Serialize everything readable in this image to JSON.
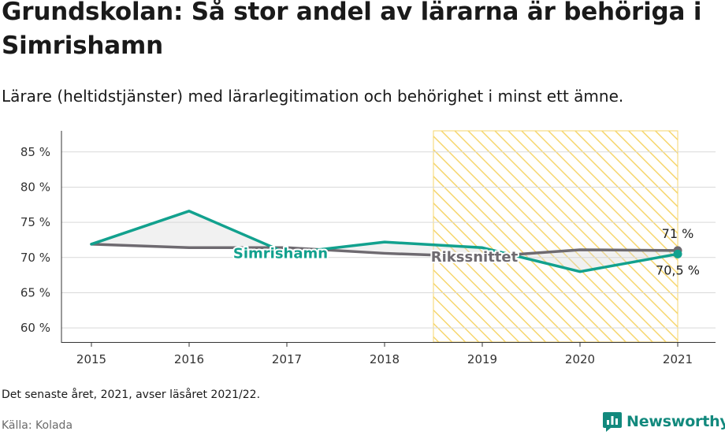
{
  "title": "Grundskolan: Så stor andel av lärarna är behöriga i Simrishamn",
  "subtitle": "Lärare (heltidstjänster) med lärarlegitimation och behörighet i minst ett ämne.",
  "note": "Det senaste året, 2021, avser läsåret 2021/22.",
  "source": "Källa: Kolada",
  "brand": {
    "name": "Newsworthy",
    "icon": "newsworthy-logo-icon",
    "color": "#12897d"
  },
  "chart_data": {
    "type": "line",
    "x": [
      "2015",
      "2016",
      "2017",
      "2018",
      "2019",
      "2020",
      "2021"
    ],
    "y_ticks": [
      60,
      65,
      70,
      75,
      80,
      85
    ],
    "y_tick_labels": [
      "60 %",
      "65 %",
      "70 %",
      "75 %",
      "80 %",
      "85 %"
    ],
    "ylim": [
      58,
      88
    ],
    "grid": true,
    "highlight": {
      "from": "2018.5",
      "to": "2021",
      "pattern": "hatched",
      "color": "#f6d66e"
    },
    "series": [
      {
        "name": "Simrishamn",
        "color": "#12a18e",
        "values": [
          71.9,
          76.6,
          70.6,
          72.2,
          71.4,
          68.0,
          70.5
        ]
      },
      {
        "name": "Rikssnittet",
        "color": "#6e6a70",
        "values": [
          71.9,
          71.4,
          71.4,
          70.6,
          70.1,
          71.1,
          71.0
        ]
      }
    ],
    "end_labels": {
      "Rikssnittet": "71 %",
      "Simrishamn": "70,5 %"
    }
  }
}
